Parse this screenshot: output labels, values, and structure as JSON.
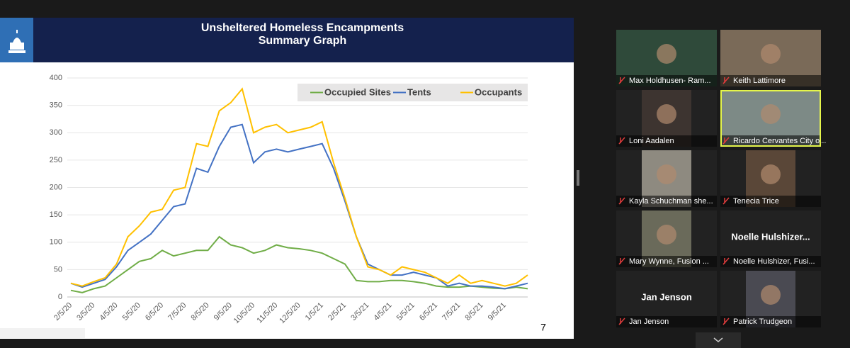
{
  "chart_data": {
    "type": "line",
    "title": "Unsheltered Homeless Encampments",
    "subtitle": "Summary Graph",
    "categories": [
      "2/5/20",
      null,
      "3/5/20",
      null,
      "4/5/20",
      null,
      "5/5/20",
      null,
      "6/5/20",
      null,
      "7/5/20",
      null,
      "8/5/20",
      null,
      "9/5/20",
      null,
      "10/5/20",
      null,
      "11/5/20",
      null,
      "12/5/20",
      null,
      "1/5/21",
      null,
      "2/5/21",
      null,
      "3/5/21",
      null,
      "4/5/21",
      null,
      "5/5/21",
      null,
      "6/5/21",
      null,
      "7/5/21",
      null,
      "8/5/21",
      null,
      "9/5/21",
      null,
      null
    ],
    "series": [
      {
        "name": "Occupied Sites",
        "color": "#70ad47",
        "values": [
          12,
          8,
          15,
          20,
          35,
          50,
          65,
          70,
          85,
          75,
          80,
          85,
          85,
          110,
          95,
          90,
          80,
          85,
          95,
          90,
          88,
          85,
          80,
          70,
          60,
          30,
          28,
          28,
          30,
          30,
          28,
          25,
          20,
          18,
          18,
          20,
          18,
          16,
          15,
          18,
          15
        ]
      },
      {
        "name": "Tents",
        "color": "#4472c4",
        "values": [
          25,
          18,
          25,
          32,
          55,
          85,
          100,
          115,
          140,
          165,
          170,
          235,
          228,
          275,
          310,
          315,
          245,
          265,
          270,
          265,
          270,
          275,
          280,
          235,
          175,
          110,
          60,
          50,
          40,
          40,
          45,
          40,
          35,
          20,
          25,
          20,
          20,
          18,
          15,
          20,
          25
        ]
      },
      {
        "name": "Occupants",
        "color": "#ffc000",
        "values": [
          25,
          20,
          28,
          35,
          60,
          110,
          130,
          155,
          160,
          195,
          200,
          280,
          275,
          340,
          355,
          380,
          300,
          310,
          315,
          300,
          305,
          310,
          320,
          245,
          180,
          110,
          55,
          50,
          40,
          55,
          50,
          45,
          35,
          25,
          40,
          25,
          30,
          25,
          20,
          25,
          40
        ]
      }
    ],
    "ylim": [
      0,
      400
    ],
    "yticks": [
      0,
      50,
      100,
      150,
      200,
      250,
      300,
      350,
      400
    ],
    "grid": true,
    "legend": "top-right"
  },
  "slide": {
    "page_number": "7"
  },
  "participants": [
    {
      "label": "Max Holdhusen- Ram..."
    },
    {
      "label": "Keith Lattimore"
    },
    {
      "label": "Loni Aadalen"
    },
    {
      "label": "Ricardo Cervantes City o..."
    },
    {
      "label": "Kayla Schuchman she..."
    },
    {
      "label": "Tenecia Trice"
    },
    {
      "label": "Mary Wynne, Fusion ..."
    },
    {
      "label": "Noelle Hulshizer, Fusi...",
      "center_name": "Noelle  Hulshizer..."
    },
    {
      "label": "Jan Jenson",
      "center_name": "Jan Jenson"
    },
    {
      "label": "Patrick Trudgeon"
    }
  ]
}
